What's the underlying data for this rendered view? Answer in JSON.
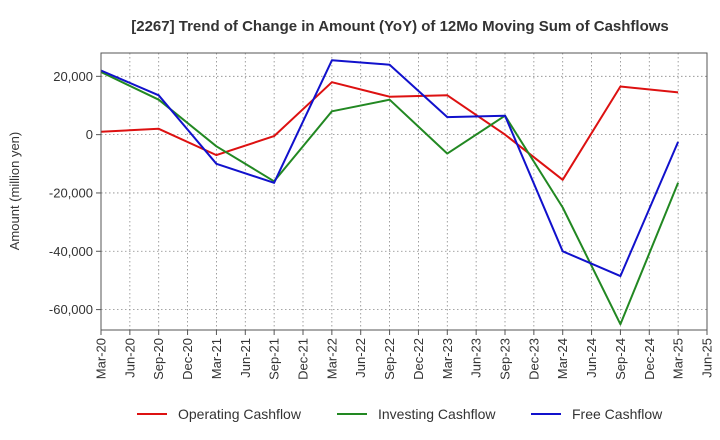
{
  "chart_data": {
    "type": "line",
    "title": "[2267]  Trend of Change in Amount (YoY) of 12Mo Moving Sum of Cashflows",
    "xlabel": "",
    "ylabel": "Amount (million yen)",
    "ylim": [
      -67000,
      28000
    ],
    "yticks": [
      20000,
      0,
      -20000,
      -40000,
      -60000
    ],
    "ytick_labels": [
      "20,000",
      "0",
      "-20,000",
      "-40,000",
      "-60,000"
    ],
    "x_ticks": [
      "Mar-20",
      "Jun-20",
      "Sep-20",
      "Dec-20",
      "Mar-21",
      "Jun-21",
      "Sep-21",
      "Dec-21",
      "Mar-22",
      "Jun-22",
      "Sep-22",
      "Dec-22",
      "Mar-23",
      "Jun-23",
      "Sep-23",
      "Dec-23",
      "Mar-24",
      "Jun-24",
      "Sep-24",
      "Dec-24",
      "Mar-25",
      "Jun-25"
    ],
    "x": [
      "Mar-20",
      "Sep-20",
      "Mar-21",
      "Sep-21",
      "Mar-22",
      "Sep-22",
      "Mar-23",
      "Sep-23",
      "Mar-24",
      "Sep-24",
      "Mar-25"
    ],
    "grid": true,
    "legend_position": "bottom",
    "series": [
      {
        "name": "Operating Cashflow",
        "color": "#dd1111",
        "values": [
          1000,
          2000,
          -7000,
          -500,
          18000,
          13000,
          13500,
          0,
          -15500,
          16500,
          14500
        ]
      },
      {
        "name": "Investing Cashflow",
        "color": "#228822",
        "values": [
          21500,
          12000,
          -4000,
          -16000,
          8000,
          12000,
          -6500,
          6500,
          -25000,
          -65000,
          -16500
        ]
      },
      {
        "name": "Free Cashflow",
        "color": "#1111cc",
        "values": [
          22000,
          13500,
          -10000,
          -16500,
          25500,
          24000,
          6000,
          6500,
          -40000,
          -48500,
          -2500
        ]
      }
    ]
  }
}
